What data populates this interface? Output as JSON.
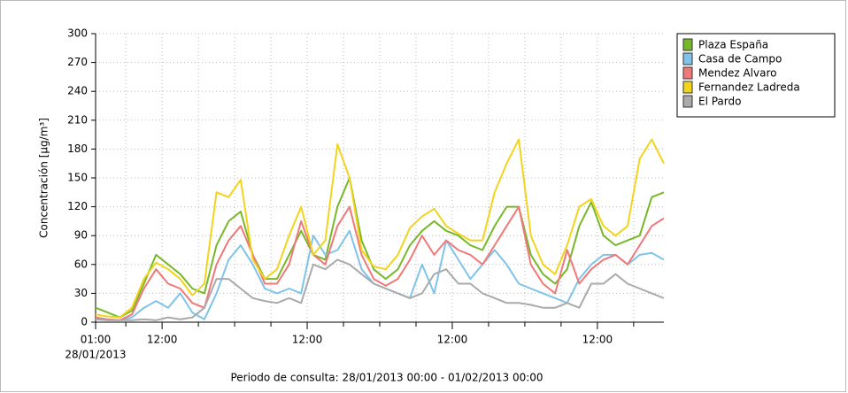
{
  "chart_data": {
    "type": "line",
    "ylabel": "Concentración [µg/m³]",
    "xlabel": "Periodo de consulta: 28/01/2013 00:00 - 01/02/2013 00:00",
    "x": [
      "2013-01-28 01:00",
      "2013-01-28 03:00",
      "2013-01-28 05:00",
      "2013-01-28 07:00",
      "2013-01-28 09:00",
      "2013-01-28 11:00",
      "2013-01-28 13:00",
      "2013-01-28 15:00",
      "2013-01-28 17:00",
      "2013-01-28 19:00",
      "2013-01-28 21:00",
      "2013-01-28 23:00",
      "2013-01-29 01:00",
      "2013-01-29 03:00",
      "2013-01-29 05:00",
      "2013-01-29 07:00",
      "2013-01-29 09:00",
      "2013-01-29 11:00",
      "2013-01-29 13:00",
      "2013-01-29 15:00",
      "2013-01-29 17:00",
      "2013-01-29 19:00",
      "2013-01-29 21:00",
      "2013-01-29 23:00",
      "2013-01-30 01:00",
      "2013-01-30 03:00",
      "2013-01-30 05:00",
      "2013-01-30 07:00",
      "2013-01-30 09:00",
      "2013-01-30 11:00",
      "2013-01-30 13:00",
      "2013-01-30 15:00",
      "2013-01-30 17:00",
      "2013-01-30 19:00",
      "2013-01-30 21:00",
      "2013-01-30 23:00",
      "2013-01-31 01:00",
      "2013-01-31 03:00",
      "2013-01-31 05:00",
      "2013-01-31 07:00",
      "2013-01-31 09:00",
      "2013-01-31 11:00",
      "2013-01-31 13:00",
      "2013-01-31 15:00",
      "2013-01-31 17:00",
      "2013-01-31 19:00",
      "2013-01-31 21:00",
      "2013-01-31 23:00"
    ],
    "series": [
      {
        "name": "Plaza España",
        "color": "#77b82a",
        "values": [
          15,
          10,
          5,
          12,
          40,
          70,
          60,
          50,
          35,
          30,
          80,
          105,
          115,
          70,
          45,
          45,
          70,
          95,
          70,
          65,
          120,
          150,
          85,
          55,
          45,
          55,
          80,
          95,
          105,
          95,
          90,
          80,
          75,
          100,
          120,
          120,
          70,
          50,
          40,
          55,
          100,
          125,
          90,
          80,
          85,
          90,
          130,
          135
        ]
      },
      {
        "name": "Casa de Campo",
        "color": "#7fc4e8",
        "values": [
          3,
          2,
          2,
          5,
          15,
          22,
          15,
          30,
          10,
          3,
          30,
          65,
          80,
          60,
          35,
          30,
          35,
          30,
          90,
          70,
          75,
          95,
          55,
          40,
          35,
          30,
          25,
          60,
          30,
          85,
          65,
          45,
          60,
          75,
          60,
          40,
          35,
          30,
          25,
          20,
          45,
          60,
          70,
          70,
          60,
          70,
          72,
          65
        ]
      },
      {
        "name": "Mendez Alvaro",
        "color": "#f07878",
        "values": [
          5,
          3,
          2,
          8,
          35,
          55,
          40,
          35,
          20,
          15,
          60,
          85,
          100,
          70,
          40,
          40,
          60,
          105,
          70,
          60,
          100,
          120,
          70,
          45,
          38,
          45,
          65,
          90,
          70,
          85,
          75,
          70,
          60,
          80,
          100,
          120,
          60,
          40,
          30,
          75,
          40,
          55,
          65,
          70,
          60,
          80,
          100,
          108
        ]
      },
      {
        "name": "Fernandez Ladreda",
        "color": "#f2d41c",
        "values": [
          8,
          6,
          5,
          15,
          45,
          62,
          55,
          45,
          28,
          40,
          135,
          130,
          148,
          65,
          45,
          55,
          90,
          120,
          70,
          85,
          185,
          150,
          75,
          58,
          55,
          70,
          98,
          110,
          118,
          100,
          92,
          85,
          85,
          135,
          165,
          190,
          90,
          60,
          50,
          80,
          120,
          128,
          100,
          90,
          100,
          170,
          190,
          165
        ]
      },
      {
        "name": "El Pardo",
        "color": "#aaaaaa",
        "values": [
          3,
          2,
          2,
          2,
          3,
          2,
          5,
          3,
          5,
          15,
          45,
          45,
          35,
          25,
          22,
          20,
          25,
          20,
          60,
          55,
          65,
          60,
          50,
          40,
          35,
          30,
          25,
          30,
          50,
          55,
          40,
          40,
          30,
          25,
          20,
          20,
          18,
          15,
          15,
          20,
          15,
          40,
          40,
          50,
          40,
          35,
          30,
          25
        ]
      }
    ],
    "xlim": [
      "2013-01-28 01:00",
      "2013-01-31 23:00"
    ],
    "xticks": [
      {
        "value": "2013-01-28 01:00",
        "label": "01:00",
        "date": "28/01/2013"
      },
      {
        "value": "2013-01-28 12:00",
        "label": "12:00"
      },
      {
        "value": "2013-01-29 12:00",
        "label": "12:00"
      },
      {
        "value": "2013-01-30 12:00",
        "label": "12:00"
      },
      {
        "value": "2013-01-31 12:00",
        "label": "12:00"
      }
    ],
    "minor_xticks": [
      "2013-01-28 06:00",
      "2013-01-28 18:00",
      "2013-01-29 00:00",
      "2013-01-29 06:00",
      "2013-01-29 18:00",
      "2013-01-30 00:00",
      "2013-01-30 06:00",
      "2013-01-30 18:00",
      "2013-01-31 00:00",
      "2013-01-31 06:00",
      "2013-01-31 18:00"
    ],
    "ylim": [
      0,
      300
    ],
    "yticks": [
      0,
      30,
      60,
      90,
      120,
      150,
      180,
      210,
      240,
      270,
      300
    ],
    "grid": true,
    "legend": "right"
  }
}
